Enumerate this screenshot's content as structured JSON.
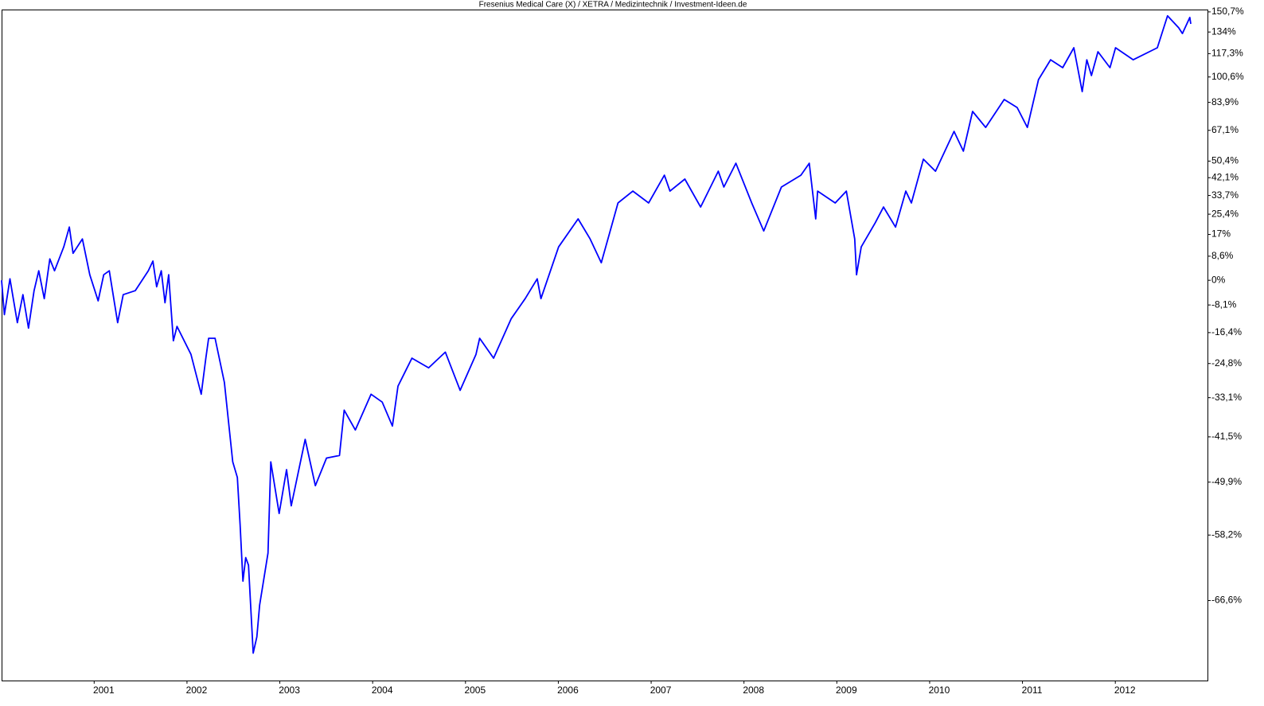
{
  "chart_data": {
    "type": "line",
    "title": "Fresenius Medical Care (X) / XETRA / Medizintechnik / Investment-Ideen.de",
    "color": "#0000ff",
    "yscale": "log",
    "grid": false,
    "xlim": [
      1999.9,
      2012.89
    ],
    "xticks": [
      2001,
      2002,
      2003,
      2004,
      2005,
      2006,
      2007,
      2008,
      2009,
      2010,
      2011,
      2012
    ],
    "ylim": [
      -74.6,
      152.7
    ],
    "yticks": [
      {
        "value": 150.7,
        "label": "150,7%"
      },
      {
        "value": 134,
        "label": "134%"
      },
      {
        "value": 117.3,
        "label": "117,3%"
      },
      {
        "value": 100.6,
        "label": "100,6%"
      },
      {
        "value": 83.9,
        "label": "83,9%"
      },
      {
        "value": 67.1,
        "label": "67,1%"
      },
      {
        "value": 50.4,
        "label": "50,4%"
      },
      {
        "value": 42.1,
        "label": "42,1%"
      },
      {
        "value": 33.7,
        "label": "33,7%"
      },
      {
        "value": 25.4,
        "label": "25,4%"
      },
      {
        "value": 17,
        "label": "17%"
      },
      {
        "value": 8.6,
        "label": "8,6%"
      },
      {
        "value": 0,
        "label": "0%"
      },
      {
        "value": -8.1,
        "label": "-8,1%"
      },
      {
        "value": -16.4,
        "label": "-16,4%"
      },
      {
        "value": -24.8,
        "label": "-24,8%"
      },
      {
        "value": -33.1,
        "label": "-33,1%"
      },
      {
        "value": -41.5,
        "label": "-41,5%"
      },
      {
        "value": -49.9,
        "label": "-49,9%"
      },
      {
        "value": -58.2,
        "label": "-58,2%"
      },
      {
        "value": -66.6,
        "label": "-66,6%"
      }
    ],
    "x": [
      1999.9,
      1999.93,
      1999.99,
      2000.07,
      2000.13,
      2000.19,
      2000.25,
      2000.3,
      2000.36,
      2000.42,
      2000.47,
      2000.57,
      2000.63,
      2000.67,
      2000.77,
      2000.85,
      2000.94,
      2001.0,
      2001.06,
      2001.15,
      2001.21,
      2001.34,
      2001.48,
      2001.53,
      2001.57,
      2001.62,
      2001.66,
      2001.7,
      2001.75,
      2001.79,
      2001.94,
      2002.05,
      2002.1,
      2002.13,
      2002.2,
      2002.3,
      2002.39,
      2002.44,
      2002.47,
      2002.5,
      2002.53,
      2002.56,
      2002.61,
      2002.65,
      2002.68,
      2002.77,
      2002.8,
      2002.89,
      2002.97,
      2003.02,
      2003.17,
      2003.28,
      2003.4,
      2003.54,
      2003.59,
      2003.71,
      2003.88,
      2004.0,
      2004.11,
      2004.17,
      2004.32,
      2004.5,
      2004.68,
      2004.84,
      2005.01,
      2005.05,
      2005.2,
      2005.39,
      2005.54,
      2005.67,
      2005.71,
      2005.9,
      2006.11,
      2006.24,
      2006.36,
      2006.48,
      2006.54,
      2006.7,
      2006.87,
      2007.04,
      2007.1,
      2007.26,
      2007.43,
      2007.62,
      2007.68,
      2007.81,
      2007.98,
      2008.11,
      2008.3,
      2008.51,
      2008.6,
      2008.67,
      2008.69,
      2008.88,
      2009.0,
      2009.09,
      2009.11,
      2009.16,
      2009.31,
      2009.4,
      2009.53,
      2009.64,
      2009.7,
      2009.83,
      2009.96,
      2010.16,
      2010.26,
      2010.36,
      2010.5,
      2010.7,
      2010.84,
      2010.95,
      2011.07,
      2011.2,
      2011.33,
      2011.45,
      2011.54,
      2011.59,
      2011.64,
      2011.71,
      2011.84,
      2011.9,
      2012.09,
      2012.35,
      2012.46,
      2012.58,
      2012.62,
      2012.7,
      2012.71
    ],
    "values": [
      0,
      -11.1,
      0.5,
      -13.5,
      -4.8,
      -15.1,
      -3.5,
      3.3,
      -6.1,
      7.6,
      3.3,
      12.1,
      20.0,
      9.7,
      15.2,
      1.9,
      -6.8,
      1.9,
      3.3,
      -13.5,
      -4.8,
      -3.5,
      3.3,
      6.8,
      -2.2,
      3.3,
      -7.4,
      1.9,
      -18.7,
      -14.6,
      -22.4,
      -32.3,
      -23.4,
      -18.0,
      -18.0,
      -29.5,
      -46.3,
      -49.1,
      -56.8,
      -64.3,
      -61.3,
      -62.3,
      -72.1,
      -70.5,
      -67.1,
      -60.7,
      -46.3,
      -55.0,
      -47.7,
      -53.8,
      -42.0,
      -50.5,
      -45.6,
      -45.1,
      -35.9,
      -40.1,
      -32.3,
      -34.1,
      -39.3,
      -30.4,
      -23.4,
      -25.9,
      -21.8,
      -31.4,
      -22.4,
      -18.0,
      -23.4,
      -12.3,
      -6.1,
      0.5,
      -6.1,
      12.1,
      23.4,
      15.2,
      6.2,
      21.7,
      30.3,
      35.7,
      30.3,
      43.3,
      35.7,
      41.4,
      28.5,
      45.3,
      37.6,
      49.3,
      30.3,
      18.4,
      37.6,
      43.3,
      49.3,
      23.4,
      35.7,
      30.3,
      35.7,
      15.2,
      1.9,
      12.1,
      21.7,
      28.5,
      20.0,
      35.7,
      30.3,
      51.4,
      45.3,
      66.5,
      55.6,
      78.3,
      68.8,
      85.7,
      80.7,
      68.8,
      98.8,
      112.8,
      107.1,
      121.7,
      90.8,
      112.8,
      101.6,
      118.7,
      107.1,
      121.7,
      112.8,
      121.7,
      147.3,
      137.4,
      132.8,
      146.0,
      140.6
    ]
  }
}
